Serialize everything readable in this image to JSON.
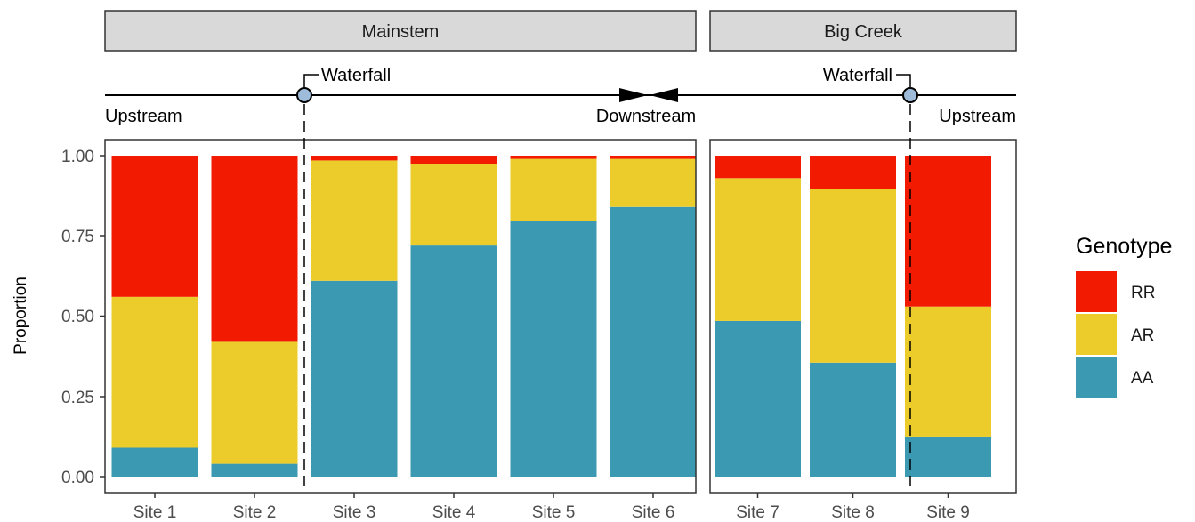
{
  "colors": {
    "RR": "#F21A00",
    "AR": "#EBCC2A",
    "AA": "#3B9AB2",
    "marker": "#9EBCDA",
    "strip_bg": "#D9D9D9"
  },
  "chart_data": {
    "type": "bar",
    "stacked": true,
    "ylabel": "Proportion",
    "ylim": [
      0,
      1
    ],
    "yticks": [
      "0.00",
      "0.25",
      "0.50",
      "0.75",
      "1.00"
    ],
    "grid": false,
    "legend": {
      "title": "Genotype",
      "position": "right",
      "entries": [
        "RR",
        "AR",
        "AA"
      ]
    },
    "panels": [
      {
        "name": "Mainstem",
        "categories": [
          "Site 1",
          "Site 2",
          "Site 3",
          "Site 4",
          "Site 5",
          "Site 6"
        ],
        "series": [
          {
            "name": "AA",
            "values": [
              0.09,
              0.04,
              0.61,
              0.72,
              0.795,
              0.84
            ]
          },
          {
            "name": "AR",
            "values": [
              0.47,
              0.38,
              0.375,
              0.255,
              0.195,
              0.15
            ]
          },
          {
            "name": "RR",
            "values": [
              0.44,
              0.58,
              0.015,
              0.025,
              0.01,
              0.01
            ]
          }
        ]
      },
      {
        "name": "Big Creek",
        "categories": [
          "Site 7",
          "Site 8",
          "Site 9"
        ],
        "series": [
          {
            "name": "AA",
            "values": [
              0.485,
              0.355,
              0.125
            ]
          },
          {
            "name": "AR",
            "values": [
              0.445,
              0.54,
              0.405
            ]
          },
          {
            "name": "RR",
            "values": [
              0.07,
              0.105,
              0.47
            ]
          }
        ]
      }
    ],
    "annotations": {
      "mainstem_waterfall": "Waterfall",
      "bigcreek_waterfall": "Waterfall",
      "upstream_left": "Upstream",
      "downstream": "Downstream",
      "upstream_right": "Upstream"
    }
  }
}
